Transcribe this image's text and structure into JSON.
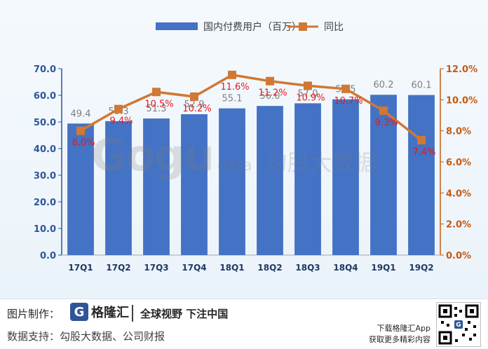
{
  "chart_data": {
    "type": "bar+line",
    "categories": [
      "17Q1",
      "17Q2",
      "17Q3",
      "17Q4",
      "18Q1",
      "18Q2",
      "18Q3",
      "18Q4",
      "19Q1",
      "19Q2"
    ],
    "series": [
      {
        "name": "国内付费用户（百万）",
        "type": "bar",
        "axis": "left",
        "color": "#4472c4",
        "values": [
          49.4,
          50.3,
          51.3,
          52.9,
          55.1,
          56.0,
          57.0,
          58.5,
          60.2,
          60.1
        ],
        "labels": [
          "49.4",
          "50.3",
          "51.3",
          "52.9",
          "55.1",
          "56.0",
          "57.0",
          "58.5",
          "60.2",
          "60.1"
        ]
      },
      {
        "name": "同比",
        "type": "line",
        "axis": "right",
        "color": "#d07834",
        "values": [
          8.0,
          9.4,
          10.5,
          10.2,
          11.6,
          11.2,
          10.9,
          10.7,
          9.3,
          7.4
        ],
        "labels": [
          "8.0%",
          "9.4%",
          "10.5%",
          "10.2%",
          "11.6%",
          "11.2%",
          "10.9%",
          "10.7%",
          "9.3%",
          "7.4%"
        ]
      }
    ],
    "left_axis": {
      "ylim": [
        0,
        70
      ],
      "ticks": [
        "0.0",
        "10.0",
        "20.0",
        "30.0",
        "40.0",
        "50.0",
        "60.0",
        "70.0"
      ]
    },
    "right_axis": {
      "ylim": [
        0,
        12
      ],
      "ticks": [
        "0.0%",
        "2.0%",
        "4.0%",
        "6.0%",
        "8.0%",
        "10.0%",
        "12.0%"
      ]
    },
    "legend": "top",
    "grid": false
  },
  "watermark": {
    "logo": "Gogu",
    "sub": "data",
    "cn": "勾股大数据"
  },
  "footer": {
    "made_by_label": "图片制作：",
    "logo_mark": "G",
    "logo_name": "格隆汇",
    "slogan": "全球视野 下注中国",
    "source": "数据支持：勾股大数据、公司财报",
    "download_line1": "下载格隆汇App",
    "download_line2": "获取更多精彩内容"
  },
  "colors": {
    "left_axis": "#2f5597",
    "right_axis": "#c55a11",
    "line_label": "#e31a1c"
  }
}
